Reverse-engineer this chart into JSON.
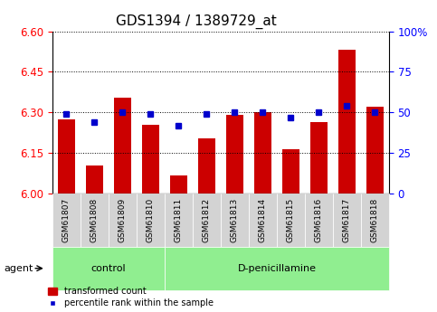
{
  "title": "GDS1394 / 1389729_at",
  "samples": [
    "GSM61807",
    "GSM61808",
    "GSM61809",
    "GSM61810",
    "GSM61811",
    "GSM61812",
    "GSM61813",
    "GSM61814",
    "GSM61815",
    "GSM61816",
    "GSM61817",
    "GSM61818"
  ],
  "bar_values": [
    6.275,
    6.105,
    6.355,
    6.255,
    6.065,
    6.205,
    6.29,
    6.3,
    6.165,
    6.265,
    6.53,
    6.32
  ],
  "percentile_values": [
    49,
    44,
    50,
    49,
    42,
    49,
    50,
    50,
    47,
    50,
    54,
    50
  ],
  "ylim_left": [
    6.0,
    6.6
  ],
  "ylim_right": [
    0,
    100
  ],
  "yticks_left": [
    6.0,
    6.15,
    6.3,
    6.45,
    6.6
  ],
  "yticks_right": [
    0,
    25,
    50,
    75,
    100
  ],
  "ytick_labels_right": [
    "0",
    "25",
    "50",
    "75",
    "100%"
  ],
  "control_count": 4,
  "control_label": "control",
  "treatment_label": "D-penicillamine",
  "agent_label": "agent",
  "legend_bar_label": "transformed count",
  "legend_dot_label": "percentile rank within the sample",
  "bar_color": "#cc0000",
  "dot_color": "#0000cc",
  "control_bg": "#90ee90",
  "treatment_bg": "#90ee90",
  "bar_width": 0.6,
  "title_fontsize": 11,
  "tick_fontsize": 8.5,
  "label_fontsize": 9
}
